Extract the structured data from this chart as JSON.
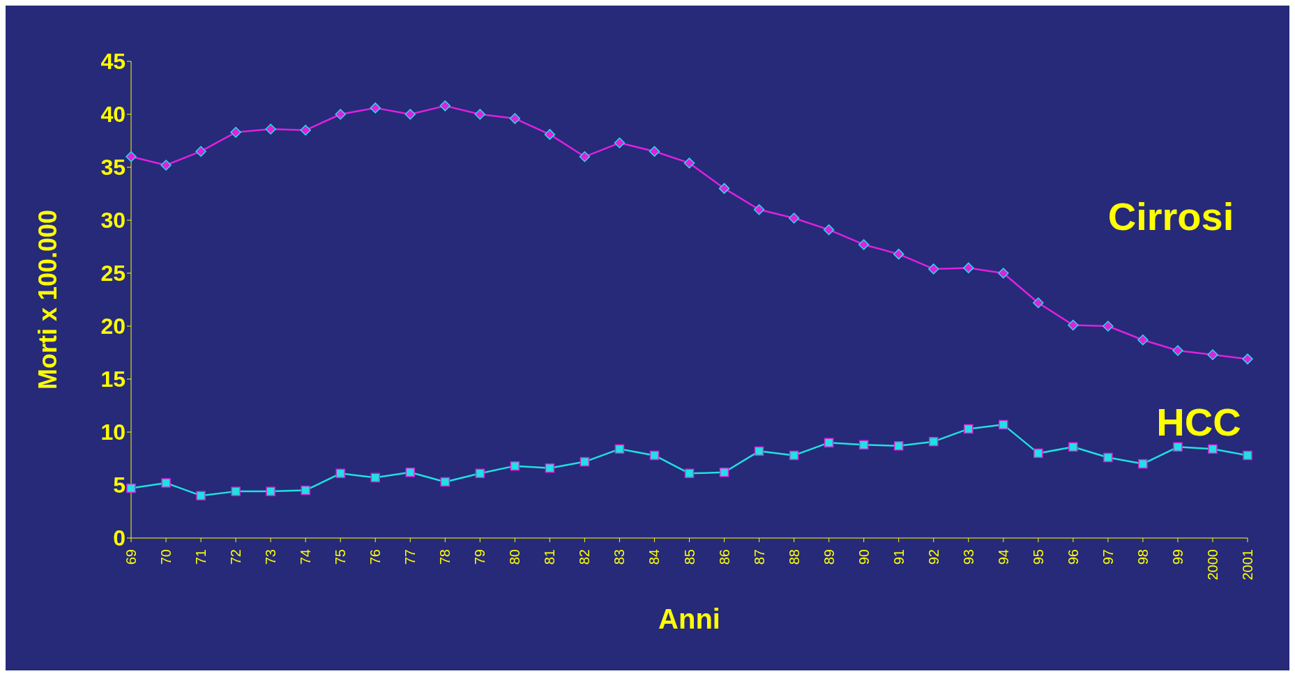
{
  "chart_data": {
    "type": "line",
    "xlabel": "Anni",
    "ylabel": "Morti x 100.000",
    "categories": [
      "69",
      "70",
      "71",
      "72",
      "73",
      "74",
      "75",
      "76",
      "77",
      "78",
      "79",
      "80",
      "81",
      "82",
      "83",
      "84",
      "85",
      "86",
      "87",
      "88",
      "89",
      "90",
      "91",
      "92",
      "93",
      "94",
      "95",
      "96",
      "97",
      "98",
      "99",
      "2000",
      "2001"
    ],
    "series": [
      {
        "name": "Cirrosi",
        "color": "#e020e0",
        "marker": "diamond",
        "values": [
          36.0,
          35.2,
          36.5,
          38.3,
          38.6,
          38.5,
          40.0,
          40.6,
          40.0,
          40.8,
          40.0,
          39.6,
          38.1,
          36.0,
          37.3,
          36.5,
          35.4,
          33.0,
          31.0,
          30.2,
          29.1,
          27.7,
          26.8,
          25.4,
          25.5,
          25.0,
          22.2,
          20.1,
          20.0,
          18.7,
          17.7,
          17.3,
          16.9
        ]
      },
      {
        "name": "HCC",
        "color": "#20e0e0",
        "marker": "square",
        "values": [
          4.7,
          5.2,
          4.0,
          4.4,
          4.4,
          4.5,
          6.1,
          5.7,
          6.2,
          5.3,
          6.1,
          6.8,
          6.6,
          7.2,
          8.4,
          7.8,
          6.1,
          6.2,
          8.2,
          7.8,
          9.0,
          8.8,
          8.7,
          9.1,
          10.3,
          10.7,
          8.0,
          8.6,
          7.6,
          7.0,
          8.6,
          8.4,
          7.8
        ]
      }
    ],
    "ylim": [
      0,
      45
    ],
    "yticks": [
      0,
      5,
      10,
      15,
      20,
      25,
      30,
      35,
      40,
      45
    ],
    "grid": false,
    "legend": false,
    "line_style": "solid"
  }
}
